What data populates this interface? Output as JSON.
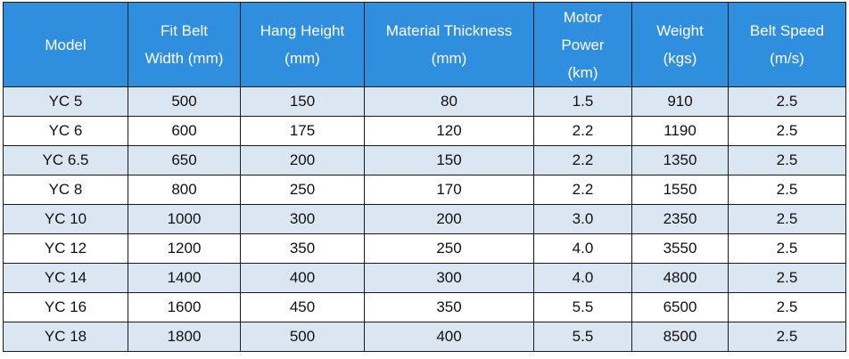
{
  "table": {
    "headers": [
      {
        "lines": [
          "Model"
        ]
      },
      {
        "lines": [
          "Fit Belt",
          "Width (mm)"
        ]
      },
      {
        "lines": [
          "Hang Height",
          "(mm)"
        ]
      },
      {
        "lines": [
          "Material Thickness",
          "(mm)"
        ]
      },
      {
        "lines": [
          "Motor",
          "Power",
          "(km)"
        ]
      },
      {
        "lines": [
          "Weight",
          "(kgs)"
        ]
      },
      {
        "lines": [
          "Belt Speed",
          "(m/s)"
        ]
      }
    ],
    "rows": [
      [
        "YC 5",
        "500",
        "150",
        "80",
        "1.5",
        "910",
        "2.5"
      ],
      [
        "YC 6",
        "600",
        "175",
        "120",
        "2.2",
        "1190",
        "2.5"
      ],
      [
        "YC 6.5",
        "650",
        "200",
        "150",
        "2.2",
        "1350",
        "2.5"
      ],
      [
        "YC 8",
        "800",
        "250",
        "170",
        "2.2",
        "1550",
        "2.5"
      ],
      [
        "YC 10",
        "1000",
        "300",
        "200",
        "3.0",
        "2350",
        "2.5"
      ],
      [
        "YC 12",
        "1200",
        "350",
        "250",
        "4.0",
        "3550",
        "2.5"
      ],
      [
        "YC 14",
        "1400",
        "400",
        "300",
        "4.0",
        "4800",
        "2.5"
      ],
      [
        "YC 16",
        "1600",
        "450",
        "350",
        "5.5",
        "6500",
        "2.5"
      ],
      [
        "YC 18",
        "1800",
        "500",
        "400",
        "5.5",
        "8500",
        "2.5"
      ]
    ]
  },
  "colors": {
    "header_bg": "#2f8fde",
    "header_text": "#ffffff",
    "row_alt_bg": "#dbe6f3",
    "row_bg": "#ffffff",
    "border": "#1a1a1a"
  }
}
